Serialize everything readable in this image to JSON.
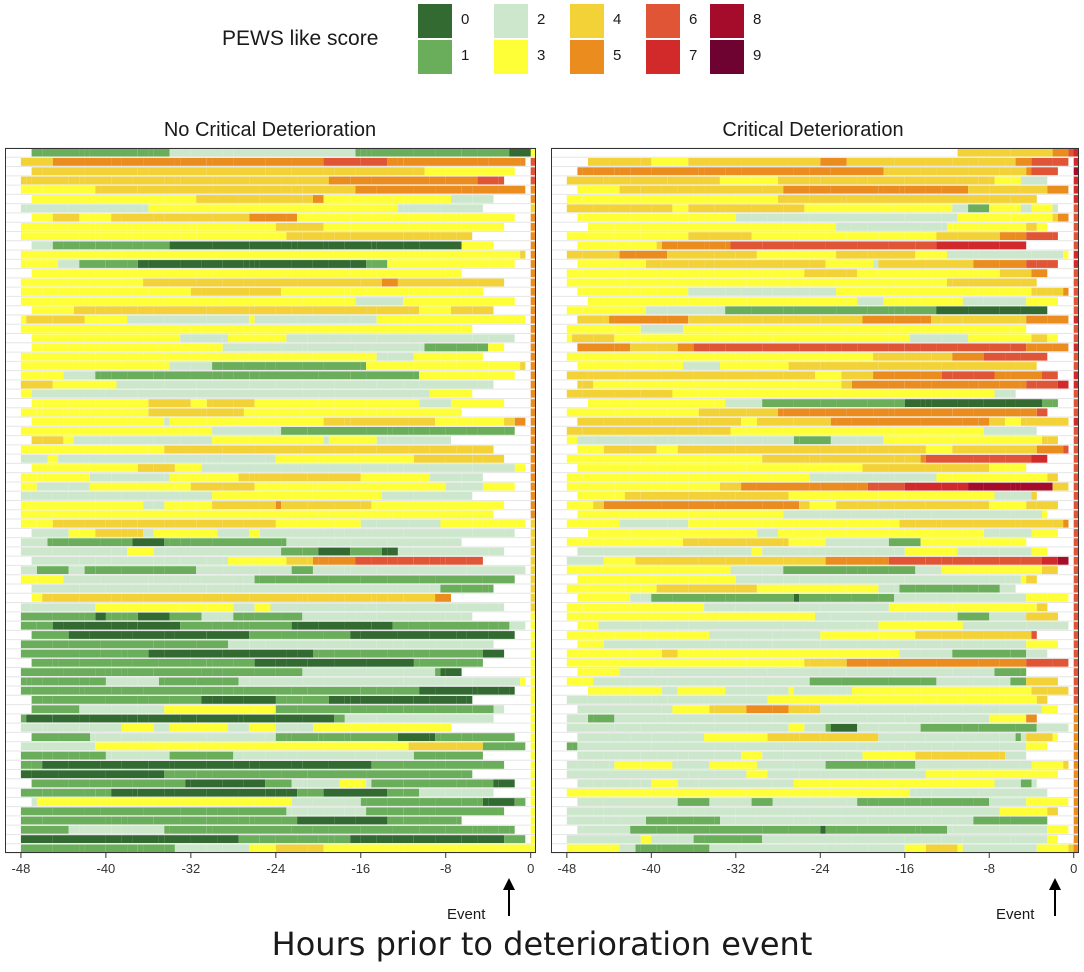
{
  "legend": {
    "title": "PEWS like score",
    "items": [
      {
        "label": "0",
        "color": "#336a32"
      },
      {
        "label": "1",
        "color": "#6aad5a"
      },
      {
        "label": "2",
        "color": "#cde7cd"
      },
      {
        "label": "3",
        "color": "#ffff38"
      },
      {
        "label": "4",
        "color": "#f2d236"
      },
      {
        "label": "5",
        "color": "#ea8c1e"
      },
      {
        "label": "6",
        "color": "#e05536"
      },
      {
        "label": "7",
        "color": "#d2292a"
      },
      {
        "label": "8",
        "color": "#a50c2c"
      },
      {
        "label": "9",
        "color": "#6e0332"
      }
    ]
  },
  "event_label": "Event",
  "x_axis_label": "Hours prior to deterioration event",
  "chart_data": [
    {
      "type": "heatmap",
      "title": "No Critical Deterioration",
      "xlabel": "Hours prior to deterioration event",
      "x_ticks": [
        -48,
        -40,
        -32,
        -24,
        -16,
        -8,
        0
      ],
      "xlim": [
        -49.5,
        0.5
      ],
      "n_rows": 76,
      "cell_hours": 0.5,
      "row_start_hours": [
        -47,
        -48,
        -47,
        -48,
        -48,
        -47,
        -48,
        -47,
        -48,
        -48,
        -47,
        -48,
        -48,
        -47,
        -48,
        -48,
        -48,
        -47,
        -48,
        -48,
        -47,
        -47,
        -48,
        -48,
        -48,
        -48,
        -48,
        -47,
        -48,
        -47,
        -48,
        -47,
        -48,
        -48,
        -47,
        -48,
        -48,
        -48,
        -48,
        -48,
        -48,
        -47,
        -48,
        -48,
        -47,
        -48,
        -48,
        -47,
        -47,
        -48,
        -48,
        -48,
        -47,
        -48,
        -48,
        -47,
        -48,
        -48,
        -48,
        -47,
        -47,
        -48,
        -48,
        -47,
        -48,
        -48,
        -48,
        -48,
        -47,
        -48,
        -47,
        -48,
        -48,
        -48,
        -48,
        -48
      ],
      "row_end_hours": [
        0,
        -1,
        -2,
        -3,
        -1,
        -4,
        -5,
        -2,
        -3,
        -6,
        -4,
        -1,
        -2,
        -7,
        -3,
        -5,
        -2,
        -4,
        -1,
        -6,
        -2,
        -3,
        -5,
        -1,
        -2,
        -4,
        -6,
        -3,
        -7,
        -1,
        -2,
        -8,
        -4,
        -3,
        -1,
        -5,
        -2,
        -6,
        -3,
        -4,
        -1,
        -2,
        -7,
        -3,
        -5,
        -1,
        -2,
        -4,
        -8,
        -3,
        -6,
        -1,
        -2,
        -4,
        -3,
        -5,
        -7,
        -1,
        -2,
        -6,
        -3,
        -4,
        -8,
        -2,
        -1,
        -5,
        -3,
        -6,
        -2,
        -4,
        -1,
        -3,
        -7,
        -2,
        -1,
        0
      ],
      "row_levels": [
        1,
        4,
        4,
        4,
        3,
        3,
        2,
        3,
        3,
        3,
        3,
        3,
        3,
        3,
        3,
        3,
        3,
        3,
        3,
        3,
        3,
        3,
        3,
        3,
        3,
        3,
        3,
        3,
        3,
        3,
        3,
        3,
        3,
        3,
        3,
        3,
        3,
        3,
        3,
        3,
        2,
        2,
        2,
        2,
        2,
        2,
        2,
        2,
        2,
        2,
        1,
        1,
        1,
        1,
        1,
        1,
        1,
        1,
        1,
        1,
        1,
        1,
        1,
        1,
        1,
        1,
        1,
        1,
        1,
        1,
        1,
        1,
        1,
        1,
        1,
        1
      ]
    },
    {
      "type": "heatmap",
      "title": "Critical Deterioration",
      "xlabel": "Hours prior to deterioration event",
      "x_ticks": [
        -48,
        -40,
        -32,
        -24,
        -16,
        -8,
        0
      ],
      "xlim": [
        -49.5,
        0.5
      ],
      "n_rows": 76,
      "cell_hours": 0.5,
      "row_start_hours": [
        -11,
        -46,
        -47,
        -48,
        -47,
        -48,
        -48,
        -47,
        -46,
        -48,
        -47,
        -48,
        -47,
        -48,
        -48,
        -47,
        -46,
        -48,
        -47,
        -48,
        -48,
        -47,
        -48,
        -47,
        -48,
        -47,
        -48,
        -46,
        -48,
        -47,
        -48,
        -48,
        -47,
        -48,
        -47,
        -48,
        -48,
        -47,
        -48,
        -47,
        -48,
        -46,
        -48,
        -47,
        -48,
        -48,
        -47,
        -48,
        -47,
        -48,
        -48,
        -47,
        -48,
        -47,
        -48,
        -48,
        -47,
        -48,
        -46,
        -48,
        -47,
        -48,
        -48,
        -47,
        -48,
        -47,
        -48,
        -48,
        -47,
        -48,
        -47,
        -48,
        -48,
        -47,
        -48,
        -48
      ],
      "row_end_hours": [
        0,
        -1,
        -2,
        -3,
        -1,
        -4,
        -2,
        -1,
        -3,
        -2,
        -5,
        -1,
        -2,
        -3,
        -4,
        -1,
        -2,
        -3,
        -1,
        -5,
        -2,
        -1,
        -3,
        -4,
        -2,
        -1,
        -6,
        -2,
        -3,
        -1,
        -4,
        -2,
        -1,
        -3,
        -5,
        -2,
        -1,
        -4,
        -2,
        -3,
        -1,
        -2,
        -5,
        -3,
        -1,
        -2,
        -4,
        -6,
        -1,
        -3,
        -2,
        -1,
        -4,
        -2,
        -3,
        -1,
        -5,
        -2,
        -1,
        -3,
        -2,
        -4,
        -1,
        -2,
        -3,
        -5,
        -1,
        -2,
        -4,
        -3,
        -1,
        -2,
        -3,
        -1,
        -2,
        0
      ],
      "row_levels": [
        4,
        4,
        5,
        4,
        4,
        4,
        3,
        3,
        3,
        3,
        3,
        4,
        4,
        3,
        3,
        3,
        3,
        3,
        4,
        3,
        3,
        4,
        3,
        3,
        4,
        4,
        3,
        3,
        3,
        4,
        3,
        3,
        3,
        3,
        3,
        3,
        3,
        3,
        3,
        3,
        3,
        3,
        3,
        3,
        3,
        3,
        3,
        3,
        3,
        3,
        3,
        3,
        3,
        3,
        3,
        3,
        3,
        3,
        3,
        3,
        2,
        2,
        2,
        2,
        2,
        2,
        2,
        2,
        2,
        2,
        2,
        2,
        2,
        2,
        2,
        2
      ]
    }
  ]
}
